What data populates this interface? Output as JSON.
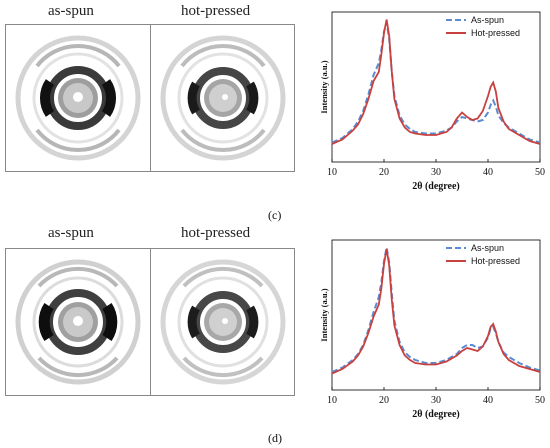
{
  "panels": [
    {
      "letter": "(c)",
      "pattern_labels": {
        "left": "as-spun",
        "right": "hot-pressed"
      }
    },
    {
      "letter": "(d)",
      "pattern_labels": {
        "left": "as-spun",
        "right": "hot-pressed"
      }
    }
  ],
  "chart_data": [
    {
      "type": "line",
      "title": "",
      "xlabel": "2θ (degree)",
      "ylabel": "Intensity (a.u.)",
      "xlim": [
        10,
        50
      ],
      "ylim": [
        0,
        1.0
      ],
      "xticks": [
        10,
        20,
        30,
        40,
        50
      ],
      "grid": false,
      "legend_position": "top-right",
      "series": [
        {
          "name": "As-spun",
          "color": "#5b8bd0",
          "style": "dashed",
          "x": [
            10,
            12,
            14,
            15,
            16,
            17,
            18,
            19,
            19.5,
            20,
            20.5,
            21,
            21.5,
            22,
            23,
            24,
            25,
            26,
            28,
            30,
            32,
            33,
            34,
            35,
            36,
            37,
            38,
            39,
            40,
            40.5,
            41,
            41.5,
            42,
            43,
            44,
            46,
            48,
            50
          ],
          "y": [
            0.13,
            0.16,
            0.22,
            0.27,
            0.34,
            0.45,
            0.58,
            0.66,
            0.75,
            0.87,
            0.93,
            0.82,
            0.6,
            0.44,
            0.31,
            0.25,
            0.22,
            0.2,
            0.19,
            0.19,
            0.21,
            0.23,
            0.27,
            0.3,
            0.29,
            0.28,
            0.27,
            0.28,
            0.33,
            0.38,
            0.41,
            0.37,
            0.31,
            0.26,
            0.23,
            0.19,
            0.15,
            0.13
          ]
        },
        {
          "name": "Hot-pressed",
          "color": "#c9413f",
          "style": "solid",
          "x": [
            10,
            12,
            14,
            15,
            16,
            17,
            18,
            19,
            19.5,
            20,
            20.5,
            21,
            21.5,
            22,
            23,
            24,
            25,
            26,
            28,
            30,
            32,
            33,
            34,
            35,
            36,
            37,
            38,
            39,
            40,
            40.5,
            41,
            41.5,
            42,
            43,
            44,
            46,
            48,
            50
          ],
          "y": [
            0.12,
            0.15,
            0.21,
            0.25,
            0.32,
            0.42,
            0.54,
            0.6,
            0.72,
            0.86,
            0.95,
            0.84,
            0.6,
            0.42,
            0.29,
            0.23,
            0.2,
            0.19,
            0.18,
            0.18,
            0.2,
            0.23,
            0.29,
            0.33,
            0.3,
            0.28,
            0.29,
            0.34,
            0.44,
            0.5,
            0.53,
            0.47,
            0.36,
            0.27,
            0.22,
            0.18,
            0.14,
            0.12
          ]
        }
      ]
    },
    {
      "type": "line",
      "title": "",
      "xlabel": "2θ (degree)",
      "ylabel": "Intensity (a.u.)",
      "xlim": [
        10,
        50
      ],
      "ylim": [
        0,
        1.0
      ],
      "xticks": [
        10,
        20,
        30,
        40,
        50
      ],
      "grid": false,
      "legend_position": "top-right",
      "series": [
        {
          "name": "As-spun",
          "color": "#5b8bd0",
          "style": "dashed",
          "x": [
            10,
            12,
            14,
            15,
            16,
            17,
            18,
            19,
            19.5,
            20,
            20.5,
            21,
            21.5,
            22,
            23,
            24,
            25,
            26,
            28,
            30,
            32,
            34,
            35,
            36,
            37,
            38,
            39,
            40,
            40.5,
            41,
            41.5,
            42,
            43,
            44,
            46,
            48,
            50
          ],
          "y": [
            0.12,
            0.15,
            0.2,
            0.24,
            0.3,
            0.4,
            0.52,
            0.62,
            0.72,
            0.86,
            0.95,
            0.85,
            0.64,
            0.46,
            0.32,
            0.25,
            0.22,
            0.2,
            0.18,
            0.18,
            0.2,
            0.24,
            0.28,
            0.3,
            0.3,
            0.28,
            0.29,
            0.35,
            0.41,
            0.42,
            0.38,
            0.32,
            0.25,
            0.22,
            0.18,
            0.15,
            0.13
          ]
        },
        {
          "name": "Hot-pressed",
          "color": "#c9413f",
          "style": "solid",
          "x": [
            10,
            12,
            14,
            15,
            16,
            17,
            18,
            19,
            19.5,
            20,
            20.5,
            21,
            21.5,
            22,
            23,
            24,
            25,
            26,
            28,
            30,
            32,
            34,
            35,
            36,
            37,
            38,
            39,
            40,
            40.5,
            41,
            41.5,
            42,
            43,
            44,
            46,
            48,
            50
          ],
          "y": [
            0.11,
            0.14,
            0.19,
            0.23,
            0.29,
            0.38,
            0.49,
            0.57,
            0.68,
            0.84,
            0.94,
            0.83,
            0.6,
            0.43,
            0.3,
            0.23,
            0.2,
            0.18,
            0.17,
            0.17,
            0.19,
            0.23,
            0.26,
            0.28,
            0.27,
            0.26,
            0.29,
            0.36,
            0.42,
            0.44,
            0.39,
            0.32,
            0.24,
            0.2,
            0.16,
            0.14,
            0.12
          ]
        }
      ]
    }
  ]
}
